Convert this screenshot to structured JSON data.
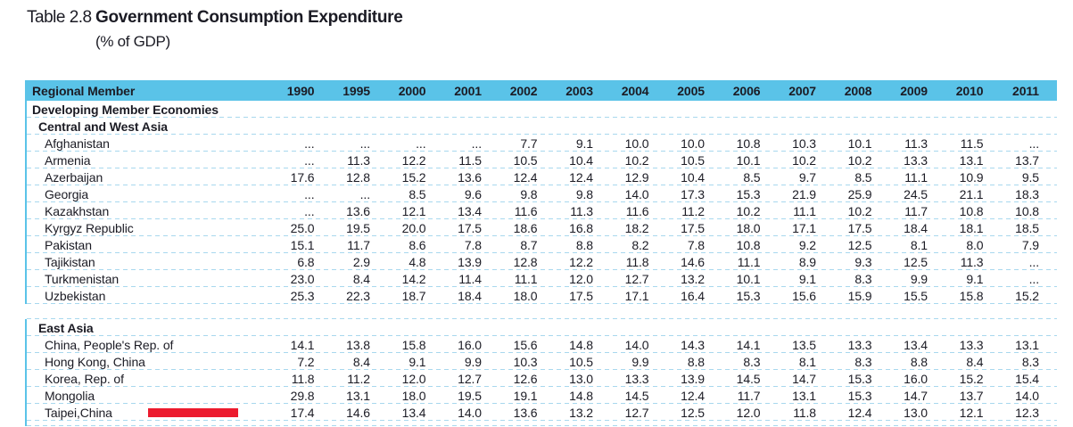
{
  "title": {
    "label": "Table 2.8",
    "heading": "Government Consumption Expenditure",
    "subtitle": "(% of GDP)"
  },
  "table": {
    "row_header": "Regional Member",
    "years": [
      "1990",
      "1995",
      "2000",
      "2001",
      "2002",
      "2003",
      "2004",
      "2005",
      "2006",
      "2007",
      "2008",
      "2009",
      "2010",
      "2011"
    ],
    "group_header": "Developing Member Economies",
    "sections": [
      {
        "name": "Central and West Asia",
        "rows": [
          {
            "name": "Afghanistan",
            "values": [
              "...",
              "...",
              "...",
              "...",
              "7.7",
              "9.1",
              "10.0",
              "10.0",
              "10.8",
              "10.3",
              "10.1",
              "11.3",
              "11.5",
              "..."
            ]
          },
          {
            "name": "Armenia",
            "values": [
              "...",
              "11.3",
              "12.2",
              "11.5",
              "10.5",
              "10.4",
              "10.2",
              "10.5",
              "10.1",
              "10.2",
              "10.2",
              "13.3",
              "13.1",
              "13.7"
            ]
          },
          {
            "name": "Azerbaijan",
            "values": [
              "17.6",
              "12.8",
              "15.2",
              "13.6",
              "12.4",
              "12.4",
              "12.9",
              "10.4",
              "8.5",
              "9.7",
              "8.5",
              "11.1",
              "10.9",
              "9.5"
            ]
          },
          {
            "name": "Georgia",
            "values": [
              "...",
              "...",
              "8.5",
              "9.6",
              "9.8",
              "9.8",
              "14.0",
              "17.3",
              "15.3",
              "21.9",
              "25.9",
              "24.5",
              "21.1",
              "18.3"
            ]
          },
          {
            "name": "Kazakhstan",
            "values": [
              "...",
              "13.6",
              "12.1",
              "13.4",
              "11.6",
              "11.3",
              "11.6",
              "11.2",
              "10.2",
              "11.1",
              "10.2",
              "11.7",
              "10.8",
              "10.8"
            ]
          },
          {
            "name": "Kyrgyz Republic",
            "values": [
              "25.0",
              "19.5",
              "20.0",
              "17.5",
              "18.6",
              "16.8",
              "18.2",
              "17.5",
              "18.0",
              "17.1",
              "17.5",
              "18.4",
              "18.1",
              "18.5"
            ]
          },
          {
            "name": "Pakistan",
            "values": [
              "15.1",
              "11.7",
              "8.6",
              "7.8",
              "8.7",
              "8.8",
              "8.2",
              "7.8",
              "10.8",
              "9.2",
              "12.5",
              "8.1",
              "8.0",
              "7.9"
            ]
          },
          {
            "name": "Tajikistan",
            "values": [
              "6.8",
              "2.9",
              "4.8",
              "13.9",
              "12.8",
              "12.2",
              "11.8",
              "14.6",
              "11.1",
              "8.9",
              "9.3",
              "12.5",
              "11.3",
              "..."
            ]
          },
          {
            "name": "Turkmenistan",
            "values": [
              "23.0",
              "8.4",
              "14.2",
              "11.4",
              "11.1",
              "12.0",
              "12.7",
              "13.2",
              "10.1",
              "9.1",
              "8.3",
              "9.9",
              "9.1",
              "..."
            ]
          },
          {
            "name": "Uzbekistan",
            "values": [
              "25.3",
              "22.3",
              "18.7",
              "18.4",
              "18.0",
              "17.5",
              "17.1",
              "16.4",
              "15.3",
              "15.6",
              "15.9",
              "15.5",
              "15.8",
              "15.2"
            ]
          }
        ]
      },
      {
        "name": "East Asia",
        "rows": [
          {
            "name": "China, People's Rep. of",
            "values": [
              "14.1",
              "13.8",
              "15.8",
              "16.0",
              "15.6",
              "14.8",
              "14.0",
              "14.3",
              "14.1",
              "13.5",
              "13.3",
              "13.4",
              "13.3",
              "13.1"
            ]
          },
          {
            "name": "Hong Kong, China",
            "values": [
              "7.2",
              "8.4",
              "9.1",
              "9.9",
              "10.3",
              "10.5",
              "9.9",
              "8.8",
              "8.3",
              "8.1",
              "8.3",
              "8.8",
              "8.4",
              "8.3"
            ]
          },
          {
            "name": "Korea, Rep. of",
            "values": [
              "11.8",
              "11.2",
              "12.0",
              "12.7",
              "12.6",
              "13.0",
              "13.3",
              "13.9",
              "14.5",
              "14.7",
              "15.3",
              "16.0",
              "15.2",
              "15.4"
            ]
          },
          {
            "name": "Mongolia",
            "values": [
              "29.8",
              "13.1",
              "18.0",
              "19.5",
              "19.1",
              "14.8",
              "14.5",
              "12.4",
              "11.7",
              "13.1",
              "15.3",
              "14.7",
              "13.7",
              "14.0"
            ]
          },
          {
            "name": "Taipei,China",
            "highlight": "red-bar",
            "values": [
              "17.4",
              "14.6",
              "13.4",
              "14.0",
              "13.6",
              "13.2",
              "12.7",
              "12.5",
              "12.0",
              "11.8",
              "12.4",
              "13.0",
              "12.1",
              "12.3"
            ]
          }
        ]
      }
    ]
  },
  "colors": {
    "header_bg": "#5AC3E8",
    "row_line": "#A8D8EE",
    "left_rule": "#5AC3E8",
    "text": "#1B1B24",
    "red_bar": "#EC1B2E"
  }
}
